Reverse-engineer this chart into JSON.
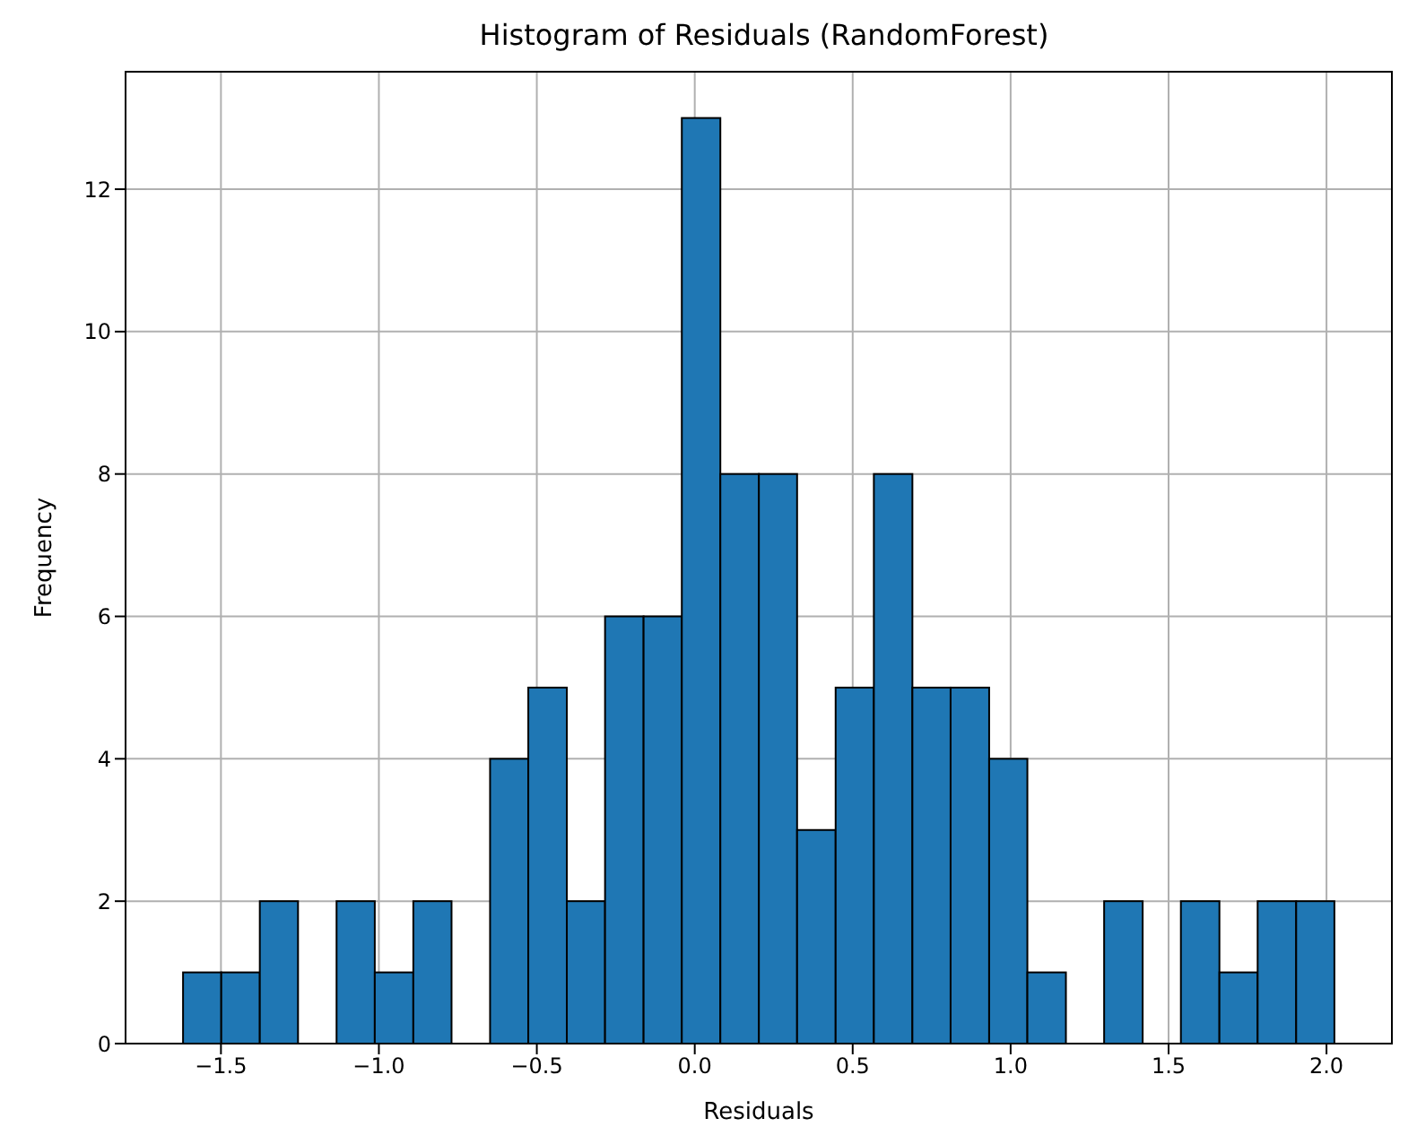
{
  "chart_data": {
    "type": "histogram",
    "title": "Histogram of Residuals (RandomForest)",
    "xlabel": "Residuals",
    "ylabel": "Frequency",
    "bins": [
      -1.62,
      -1.499,
      -1.377,
      -1.256,
      -1.134,
      -1.013,
      -0.891,
      -0.77,
      -0.648,
      -0.527,
      -0.405,
      -0.284,
      -0.162,
      -0.041,
      0.081,
      0.203,
      0.324,
      0.446,
      0.567,
      0.689,
      0.81,
      0.932,
      1.053,
      1.175,
      1.296,
      1.418,
      1.539,
      1.661,
      1.782,
      1.904,
      2.025
    ],
    "values": [
      1,
      1,
      2,
      0,
      2,
      1,
      2,
      0,
      4,
      5,
      2,
      6,
      6,
      13,
      8,
      8,
      3,
      5,
      8,
      5,
      5,
      4,
      1,
      0,
      2,
      0,
      2,
      1,
      2,
      2
    ],
    "color": "#1f77b4",
    "xlim": [
      -1.802,
      2.207
    ],
    "xticks": [
      {
        "value": -1.5,
        "label": "−1.5"
      },
      {
        "value": -1.0,
        "label": "−1.0"
      },
      {
        "value": -0.5,
        "label": "−0.5"
      },
      {
        "value": 0,
        "label": "0.0"
      },
      {
        "value": 0.5,
        "label": "0.5"
      },
      {
        "value": 1.0,
        "label": "1.0"
      },
      {
        "value": 1.5,
        "label": "1.5"
      },
      {
        "value": 2.0,
        "label": "2.0"
      }
    ],
    "ylim": [
      0,
      13.65
    ],
    "yticks": [
      0,
      2,
      4,
      6,
      8,
      10,
      12
    ],
    "grid": true
  }
}
